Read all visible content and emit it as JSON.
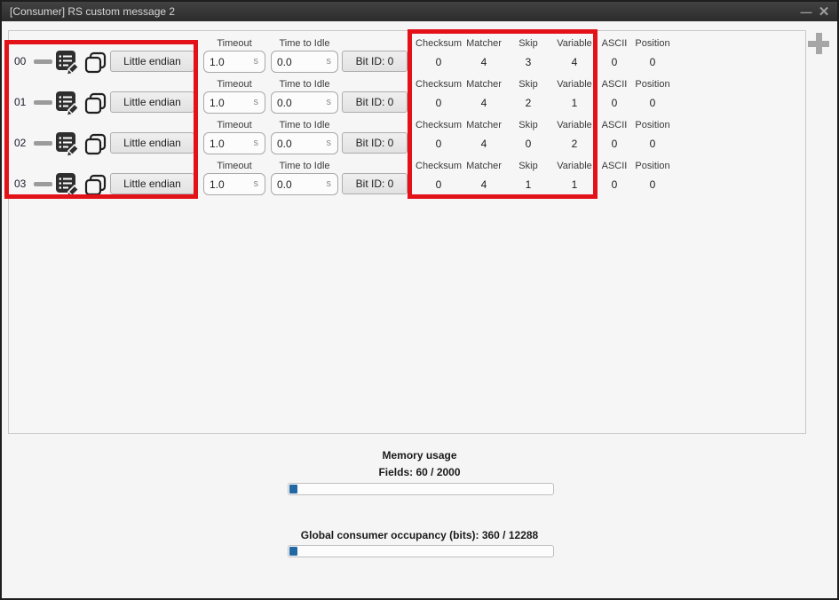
{
  "window": {
    "title": "[Consumer] RS custom message 2",
    "minimize_icon": "—",
    "close_icon": "✕",
    "add_icon": "plus"
  },
  "labels": {
    "timeout": "Timeout",
    "tti": "Time to Idle",
    "seconds": "s"
  },
  "columns": [
    "Checksum",
    "Matcher",
    "Skip",
    "Variable",
    "ASCII",
    "Position"
  ],
  "rows": [
    {
      "id": "00",
      "endian": "Little endian",
      "timeout_value": "1.0",
      "tti_value": "0.0",
      "bit_id": "Bit ID: 0",
      "stats": [
        "0",
        "4",
        "3",
        "4",
        "0",
        "0"
      ]
    },
    {
      "id": "01",
      "endian": "Little endian",
      "timeout_value": "1.0",
      "tti_value": "0.0",
      "bit_id": "Bit ID: 0",
      "stats": [
        "0",
        "4",
        "2",
        "1",
        "0",
        "0"
      ]
    },
    {
      "id": "02",
      "endian": "Little endian",
      "timeout_value": "1.0",
      "tti_value": "0.0",
      "bit_id": "Bit ID: 0",
      "stats": [
        "0",
        "4",
        "0",
        "2",
        "0",
        "0"
      ]
    },
    {
      "id": "03",
      "endian": "Little endian",
      "timeout_value": "1.0",
      "tti_value": "0.0",
      "bit_id": "Bit ID: 0",
      "stats": [
        "0",
        "4",
        "1",
        "1",
        "0",
        "0"
      ]
    }
  ],
  "footer": {
    "memory_title": "Memory usage",
    "fields_label": "Fields: 60 / 2000",
    "fields_percent": 3,
    "occupancy_label": "Global consumer occupancy (bits): 360 / 12288",
    "occupancy_percent": 3
  },
  "colors": {
    "annotation_red": "#e31219",
    "progress_blue": "#2268a5",
    "titlebar_dark": "#333333"
  }
}
